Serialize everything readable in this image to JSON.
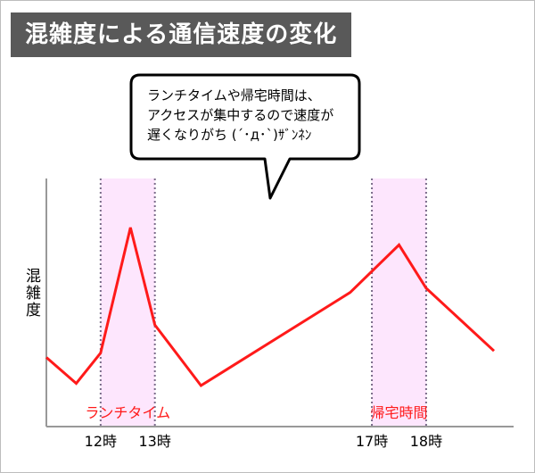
{
  "title": "混雑度による通信速度の変化",
  "bubble": {
    "lines": [
      "ランチタイムや帰宅時間は、",
      "アクセスが集中するので速度が",
      "遅くなりがち (´･д･`)ｻﾞﾝﾈﾝ"
    ]
  },
  "colors": {
    "line": "#ff1a1a",
    "band": "#fde6fd",
    "band_border": "#7a6b8a",
    "title_bg": "#595959"
  },
  "chart_data": {
    "type": "line",
    "ylabel": "混雑度",
    "xlabel": "",
    "xticks": [
      {
        "label": "12時",
        "x": 12
      },
      {
        "label": "13時",
        "x": 13
      },
      {
        "label": "17時",
        "x": 17
      },
      {
        "label": "18時",
        "x": 18
      }
    ],
    "xlim": [
      11.0,
      19.3
    ],
    "ylim": [
      0,
      100
    ],
    "series": [
      {
        "x": [
          11.0,
          11.55,
          12.0,
          12.55,
          13.0,
          13.85,
          16.6,
          17.5,
          18.0,
          19.25
        ],
        "values": [
          30,
          18,
          32,
          90,
          45,
          17,
          60,
          82,
          62,
          33
        ]
      }
    ],
    "periods": [
      {
        "label": "ランチタイム",
        "from": 12,
        "to": 13
      },
      {
        "label": "帰宅時間",
        "from": 17,
        "to": 18
      }
    ],
    "grid": false
  }
}
